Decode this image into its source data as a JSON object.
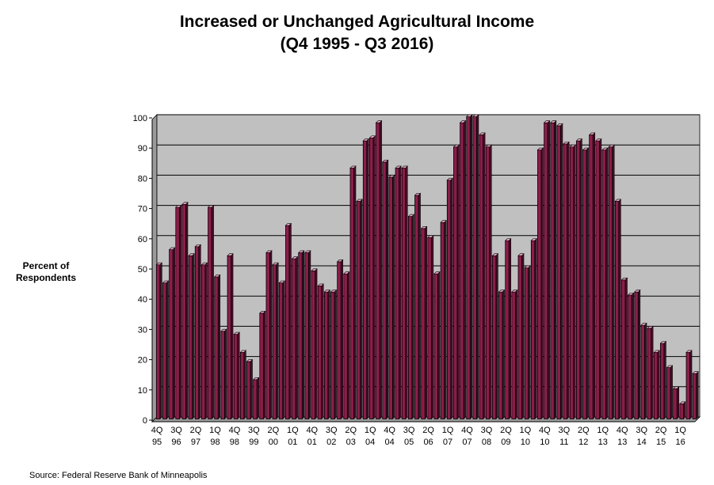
{
  "chart_data": {
    "type": "bar",
    "title": "Increased or Unchanged Agricultural Income",
    "subtitle": "(Q4 1995 - Q3 2016)",
    "ylabel": "Percent of Respondents",
    "xlabel": "",
    "ylim": [
      0,
      100
    ],
    "yticks": [
      0,
      10,
      20,
      30,
      40,
      50,
      60,
      70,
      80,
      90,
      100
    ],
    "grid": true,
    "legend": "none",
    "colors": {
      "bar": "#8b1d4a",
      "bar_highlight": "#e8a8c4",
      "plot_bg": "#c0c0c0"
    },
    "x_tick_labels": [
      [
        "4Q",
        "95"
      ],
      [
        "3Q",
        "96"
      ],
      [
        "2Q",
        "97"
      ],
      [
        "1Q",
        "98"
      ],
      [
        "4Q",
        "98"
      ],
      [
        "3Q",
        "99"
      ],
      [
        "2Q",
        "00"
      ],
      [
        "1Q",
        "01"
      ],
      [
        "4Q",
        "01"
      ],
      [
        "3Q",
        "02"
      ],
      [
        "2Q",
        "03"
      ],
      [
        "1Q",
        "04"
      ],
      [
        "4Q",
        "04"
      ],
      [
        "3Q",
        "05"
      ],
      [
        "2Q",
        "06"
      ],
      [
        "1Q",
        "07"
      ],
      [
        "4Q",
        "07"
      ],
      [
        "3Q",
        "08"
      ],
      [
        "2Q",
        "09"
      ],
      [
        "1Q",
        "10"
      ],
      [
        "4Q",
        "10"
      ],
      [
        "3Q",
        "11"
      ],
      [
        "2Q",
        "12"
      ],
      [
        "1Q",
        "13"
      ],
      [
        "4Q",
        "13"
      ],
      [
        "3Q",
        "14"
      ],
      [
        "2Q",
        "15"
      ],
      [
        "1Q",
        "16"
      ]
    ],
    "categories": [
      "4Q95",
      "1Q96",
      "2Q96",
      "3Q96",
      "4Q96",
      "1Q97",
      "2Q97",
      "3Q97",
      "4Q97",
      "1Q98",
      "2Q98",
      "3Q98",
      "4Q98",
      "1Q99",
      "2Q99",
      "3Q99",
      "4Q99",
      "1Q00",
      "2Q00",
      "3Q00",
      "4Q00",
      "1Q01",
      "2Q01",
      "3Q01",
      "4Q01",
      "1Q02",
      "2Q02",
      "3Q02",
      "4Q02",
      "1Q03",
      "2Q03",
      "3Q03",
      "4Q03",
      "1Q04",
      "2Q04",
      "3Q04",
      "4Q04",
      "1Q05",
      "2Q05",
      "3Q05",
      "4Q05",
      "1Q06",
      "2Q06",
      "3Q06",
      "4Q06",
      "1Q07",
      "2Q07",
      "3Q07",
      "4Q07",
      "1Q08",
      "2Q08",
      "3Q08",
      "4Q08",
      "1Q09",
      "2Q09",
      "3Q09",
      "4Q09",
      "1Q10",
      "2Q10",
      "3Q10",
      "4Q10",
      "1Q11",
      "2Q11",
      "3Q11",
      "4Q11",
      "1Q12",
      "2Q12",
      "3Q12",
      "4Q12",
      "1Q13",
      "2Q13",
      "3Q13",
      "4Q13",
      "1Q14",
      "2Q14",
      "3Q14",
      "4Q14",
      "1Q15",
      "2Q15",
      "3Q15",
      "4Q15",
      "1Q16",
      "2Q16",
      "3Q16"
    ],
    "values": [
      51,
      45,
      56,
      70,
      71,
      54,
      57,
      51,
      70,
      47,
      29,
      54,
      28,
      22,
      19,
      13,
      35,
      55,
      51,
      45,
      64,
      53,
      55,
      55,
      49,
      44,
      42,
      42,
      52,
      48,
      83,
      72,
      92,
      93,
      98,
      85,
      80,
      83,
      83,
      67,
      74,
      63,
      60,
      48,
      65,
      79,
      90,
      98,
      100,
      100,
      94,
      90,
      54,
      42,
      59,
      42,
      54,
      50,
      59,
      89,
      98,
      98,
      97,
      91,
      90,
      92,
      89,
      94,
      92,
      89,
      90,
      72,
      46,
      41,
      42,
      31,
      30,
      22,
      25,
      17,
      10,
      5,
      22,
      15
    ]
  },
  "source": "Source: Federal Reserve Bank of Minneapolis"
}
